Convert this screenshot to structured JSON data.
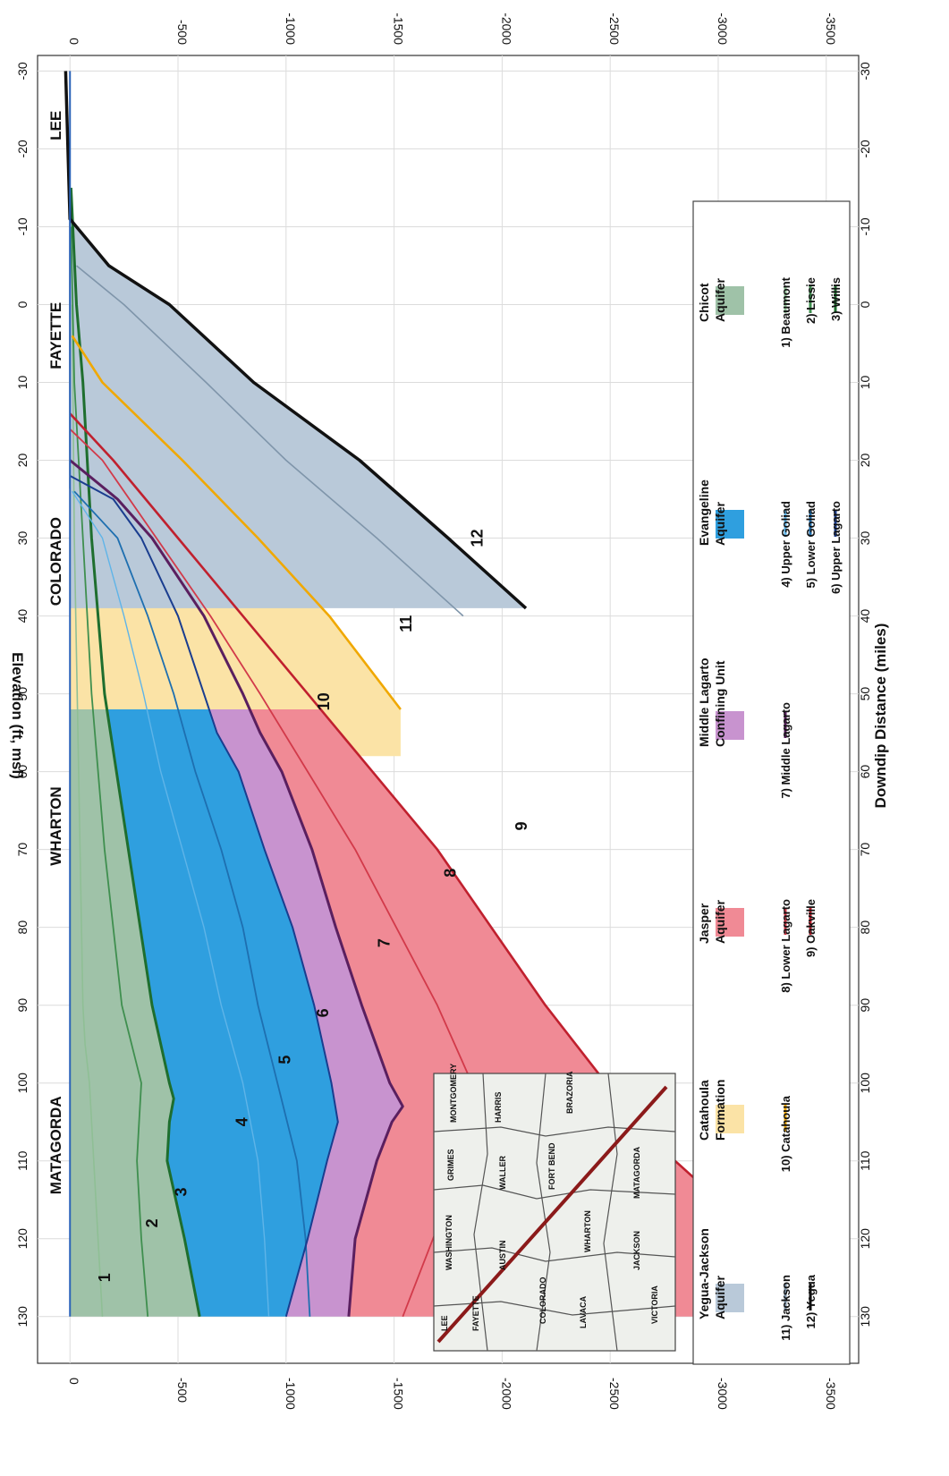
{
  "chart_data": {
    "type": "area",
    "orientation": "rotated-90-clockwise",
    "xlabel": "Downdip Distance (miles)",
    "ylabel": "Elevation (ft, msl)",
    "xlim": [
      -32,
      136
    ],
    "ylim": [
      -3650,
      150
    ],
    "x_ticks": [
      -30,
      -20,
      -10,
      0,
      10,
      20,
      30,
      40,
      50,
      60,
      70,
      80,
      90,
      100,
      110,
      120,
      130
    ],
    "y_ticks": [
      0,
      -500,
      -1000,
      -1500,
      -2000,
      -2500,
      -3000,
      -3500
    ],
    "grid": true,
    "colors": {
      "chicot": "#9fc2a8",
      "evangeline": "#2f9fdf",
      "confining": "#c893cf",
      "jasper": "#f08a95",
      "catahoula": "#fbe3a6",
      "yegua_jackson": "#b9c9d9",
      "line_beaumont": "#8fbf95",
      "line_lissie": "#3f8f4f",
      "line_willis": "#1e6e2e",
      "line_upper_goliad": "#5fb4e8",
      "line_lower_goliad": "#1e6fb0",
      "line_upper_lagarto": "#1a3d8f",
      "line_middle_lagarto": "#5a1f5f",
      "line_lower_lagarto": "#d23a4a",
      "line_oakville": "#c0202e",
      "line_catahoula": "#f0a800",
      "line_jackson": "#7f95aa",
      "line_yegua": "#111111"
    },
    "county_labels": [
      {
        "name": "LEE",
        "x": -23
      },
      {
        "name": "FAYETTE",
        "x": 4
      },
      {
        "name": "COLORADO",
        "x": 33
      },
      {
        "name": "WHARTON",
        "x": 67
      },
      {
        "name": "MATAGORDA",
        "x": 108
      }
    ],
    "unit_numbers": [
      {
        "label": "1",
        "x": 125,
        "y": -165
      },
      {
        "label": "2",
        "x": 118,
        "y": -385
      },
      {
        "label": "3",
        "x": 114,
        "y": -520
      },
      {
        "label": "4",
        "x": 105,
        "y": -800
      },
      {
        "label": "5",
        "x": 97,
        "y": -1000
      },
      {
        "label": "6",
        "x": 91,
        "y": -1175
      },
      {
        "label": "7",
        "x": 82,
        "y": -1460
      },
      {
        "label": "8",
        "x": 73,
        "y": -1765
      },
      {
        "label": "9",
        "x": 67,
        "y": -2095
      },
      {
        "label": "10",
        "x": 51,
        "y": -1180
      },
      {
        "label": "11",
        "x": 41,
        "y": -1560
      },
      {
        "label": "12",
        "x": 30,
        "y": -1890
      }
    ],
    "series": [
      {
        "name": "Beaumont",
        "x": [
          0,
          30,
          60,
          90,
          95,
          100,
          105,
          110,
          120,
          130
        ],
        "y": [
          -10,
          -20,
          -40,
          -60,
          -70,
          -90,
          -100,
          -110,
          -130,
          -150
        ]
      },
      {
        "name": "Lissie",
        "x": [
          -10,
          10,
          30,
          50,
          70,
          90,
          100,
          105,
          110,
          120,
          130
        ],
        "y": [
          -5,
          -20,
          -60,
          -100,
          -160,
          -240,
          -330,
          -320,
          -310,
          -330,
          -360
        ]
      },
      {
        "name": "Willis",
        "x": [
          -15,
          0,
          10,
          30,
          50,
          70,
          90,
          100,
          102,
          105,
          110,
          120,
          130
        ],
        "y": [
          -5,
          -30,
          -60,
          -100,
          -160,
          -270,
          -380,
          -460,
          -480,
          -460,
          -450,
          -530,
          -600
        ]
      },
      {
        "name": "Upper Goliad",
        "x": [
          24,
          30,
          40,
          50,
          60,
          70,
          80,
          90,
          100,
          110,
          120,
          130
        ],
        "y": [
          -10,
          -150,
          -250,
          -340,
          -420,
          -520,
          -620,
          -700,
          -800,
          -870,
          -900,
          -920
        ]
      },
      {
        "name": "Lower Goliad",
        "x": [
          24,
          30,
          40,
          50,
          60,
          70,
          80,
          90,
          100,
          110,
          120,
          130
        ],
        "y": [
          -20,
          -220,
          -360,
          -480,
          -580,
          -700,
          -800,
          -870,
          -960,
          -1050,
          -1090,
          -1110
        ]
      },
      {
        "name": "Upper Lagarto",
        "x": [
          22,
          25,
          30,
          40,
          50,
          55,
          60,
          70,
          80,
          90,
          100,
          105,
          110,
          120,
          130
        ],
        "y": [
          0,
          -200,
          -330,
          -500,
          -620,
          -680,
          -780,
          -900,
          -1030,
          -1130,
          -1210,
          -1240,
          -1190,
          -1100,
          -1000
        ]
      },
      {
        "name": "Middle Lagarto",
        "x": [
          20,
          25,
          30,
          40,
          50,
          55,
          60,
          70,
          80,
          90,
          100,
          103,
          105,
          110,
          120,
          130
        ],
        "y": [
          0,
          -220,
          -380,
          -620,
          -800,
          -880,
          -980,
          -1120,
          -1230,
          -1350,
          -1480,
          -1540,
          -1490,
          -1420,
          -1320,
          -1290
        ]
      },
      {
        "name": "Lower Lagarto",
        "x": [
          16,
          20,
          30,
          40,
          50,
          60,
          70,
          80,
          90,
          100,
          105,
          110,
          120,
          130
        ],
        "y": [
          0,
          -150,
          -400,
          -650,
          -880,
          -1100,
          -1320,
          -1510,
          -1700,
          -1860,
          -1920,
          -1820,
          -1680,
          -1540
        ]
      },
      {
        "name": "Oakville",
        "x": [
          14,
          20,
          30,
          40,
          50,
          60,
          70,
          80,
          90,
          100,
          103,
          105,
          110,
          120,
          125,
          130
        ],
        "y": [
          0,
          -200,
          -500,
          -800,
          -1100,
          -1400,
          -1700,
          -1950,
          -2200,
          -2480,
          -2560,
          -2380,
          -2800,
          -3200,
          -3360,
          -3550
        ]
      },
      {
        "name": "Catahoula",
        "x": [
          4,
          10,
          20,
          30,
          40,
          52
        ],
        "y": [
          -10,
          -150,
          -520,
          -870,
          -1200,
          -1530
        ]
      },
      {
        "name": "Jackson",
        "x": [
          -5,
          0,
          10,
          20,
          30,
          40
        ],
        "y": [
          -30,
          -250,
          -630,
          -1000,
          -1420,
          -1820
        ]
      },
      {
        "name": "Yegua",
        "x": [
          -30,
          -11,
          -5,
          0,
          10,
          20,
          30,
          39
        ],
        "y": [
          20,
          0,
          -180,
          -460,
          -850,
          -1340,
          -1750,
          -2110
        ]
      }
    ],
    "legend": {
      "placement": "bottom",
      "areas": [
        {
          "label": "Yegua-Jackson Aquifer",
          "color": "#b9c9d9"
        },
        {
          "label": "Catahoula Formation",
          "color": "#fbe3a6"
        },
        {
          "label": "Jasper Aquifer",
          "color": "#f08a95"
        },
        {
          "label": "Middle Lagarto Confining Unit",
          "color": "#c893cf"
        },
        {
          "label": "Evangeline Aquifer",
          "color": "#2f9fdf"
        },
        {
          "label": "Chicot Aquifer",
          "color": "#9fc2a8"
        }
      ],
      "lines": [
        {
          "label": "11) Jackson",
          "color": "#7f95aa"
        },
        {
          "label": "12) Yegua",
          "color": "#111111"
        },
        {
          "label": "10) Catahoula",
          "color": "#f0a800"
        },
        {
          "label": "8) Lower Lagarto",
          "color": "#d23a4a"
        },
        {
          "label": "9) Oakville",
          "color": "#c0202e"
        },
        {
          "label": "7) Middle Lagarto",
          "color": "#5a1f5f"
        },
        {
          "label": "4) Upper Goliad",
          "color": "#5fb4e8"
        },
        {
          "label": "5) Lower Goliad",
          "color": "#1e6fb0"
        },
        {
          "label": "6) Upper Lagarto",
          "color": "#1a3d8f"
        },
        {
          "label": "1) Beaumont",
          "color": "#8fbf95"
        },
        {
          "label": "2) Lissie",
          "color": "#3f8f4f"
        },
        {
          "label": "3) Willis",
          "color": "#1e6e2e"
        }
      ]
    },
    "inset_map": {
      "counties": [
        "LEE",
        "WASHINGTON",
        "GRIMES",
        "MONTGOMERY",
        "FAYETTE",
        "AUSTIN",
        "WALLER",
        "HARRIS",
        "COLORADO",
        "FORT BEND",
        "BRAZORIA",
        "LAVACA",
        "WHARTON",
        "JACKSON",
        "MATAGORDA",
        "VICTORIA"
      ]
    }
  }
}
